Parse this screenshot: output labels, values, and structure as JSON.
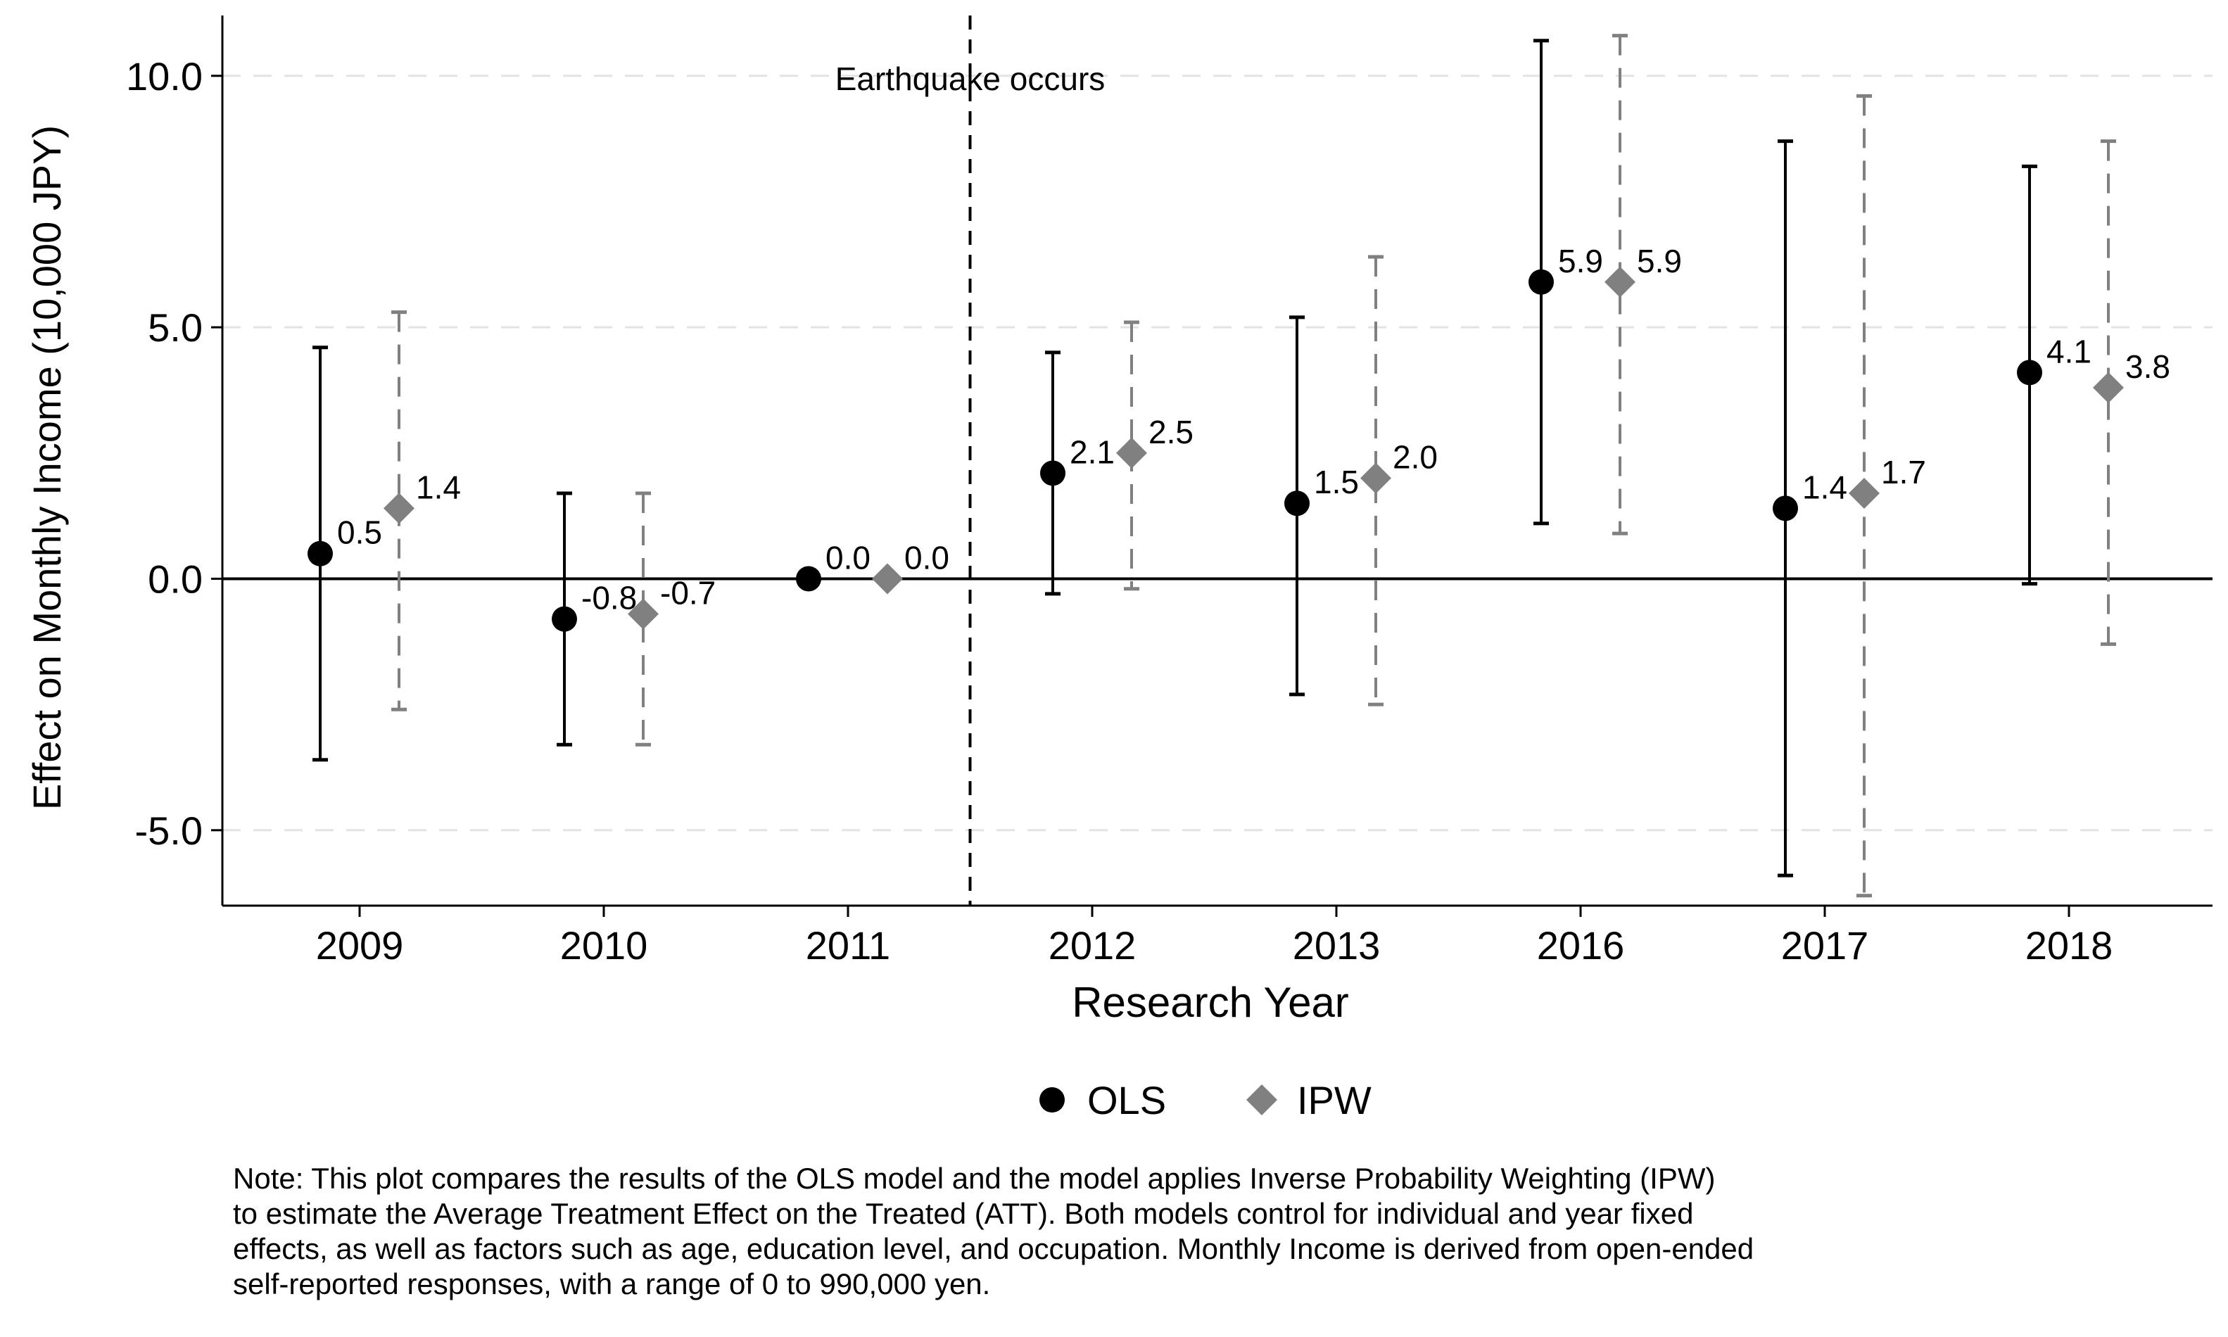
{
  "chart_data": {
    "type": "scatter",
    "categories": [
      "2009",
      "2010",
      "2011",
      "2012",
      "2013",
      "2016",
      "2017",
      "2018"
    ],
    "ylabel": "Effect on Monthly Income (10,000 JPY)",
    "xlabel": "Research Year",
    "ylim": [
      -6.5,
      11.2
    ],
    "yticks": [
      -5.0,
      0.0,
      5.0,
      10.0
    ],
    "ytick_labels": [
      "-5.0",
      "0.0",
      "5.0",
      "10.0"
    ],
    "grid": "horizontal dashed",
    "legend_position": "bottom-center",
    "series": [
      {
        "name": "OLS",
        "marker": "circle",
        "color": "#000000",
        "errorbar_style": "solid",
        "values": [
          0.5,
          -0.8,
          0.0,
          2.1,
          1.5,
          5.9,
          1.4,
          4.1
        ],
        "labels": [
          "0.5",
          "-0.8",
          "0.0",
          "2.1",
          "1.5",
          "5.9",
          "1.4",
          "4.1"
        ],
        "ci_low": [
          -3.6,
          -3.3,
          null,
          -0.3,
          -2.3,
          1.1,
          -5.9,
          -0.1
        ],
        "ci_high": [
          4.6,
          1.7,
          null,
          4.5,
          5.2,
          10.7,
          8.7,
          8.2
        ]
      },
      {
        "name": "IPW",
        "marker": "diamond",
        "color": "#808080",
        "errorbar_style": "dashed",
        "values": [
          1.4,
          -0.7,
          0.0,
          2.5,
          2.0,
          5.9,
          1.7,
          3.8
        ],
        "labels": [
          "1.4",
          "-0.7",
          "0.0",
          "2.5",
          "2.0",
          "5.9",
          "1.7",
          "3.8"
        ],
        "ci_low": [
          -2.6,
          -3.3,
          null,
          -0.2,
          -2.5,
          0.9,
          -6.3,
          -1.3
        ],
        "ci_high": [
          5.3,
          1.7,
          null,
          5.1,
          6.4,
          10.8,
          9.6,
          8.7
        ]
      }
    ],
    "reference_lines": [
      {
        "orientation": "horizontal",
        "value": 0.0,
        "style": "solid"
      },
      {
        "orientation": "vertical",
        "between": [
          "2011",
          "2012"
        ],
        "style": "dashed",
        "label": "Earthquake occurs"
      }
    ]
  },
  "note": {
    "lines": [
      "Note: This plot compares the results of the OLS model and the model applies Inverse Probability Weighting (IPW)",
      "to estimate the Average Treatment Effect on the Treated (ATT). Both models control for individual and year fixed",
      "effects, as well as factors such as age, education level, and occupation. Monthly Income is derived from open-ended",
      "self-reported responses, with a range of 0 to 990,000 yen."
    ]
  }
}
